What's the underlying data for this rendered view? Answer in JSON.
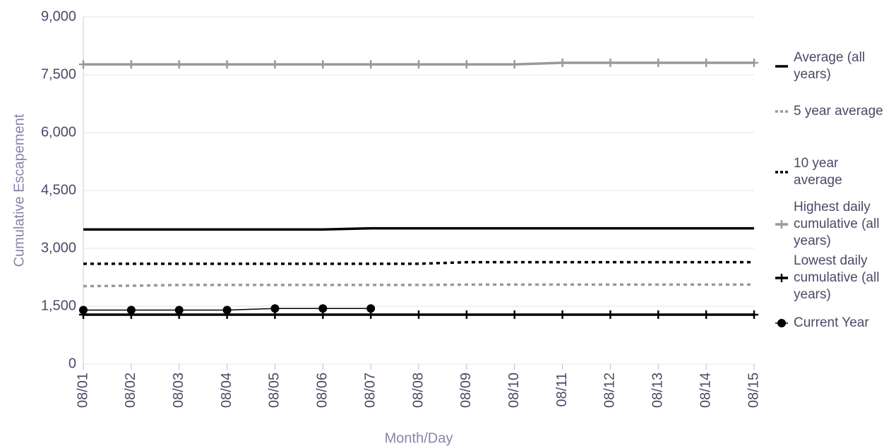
{
  "chart_data": {
    "type": "line",
    "x_label": "Month/Day",
    "y_label": "Cumulative Escapement",
    "categories": [
      "08/01",
      "08/02",
      "08/03",
      "08/04",
      "08/05",
      "08/06",
      "08/07",
      "08/08",
      "08/09",
      "08/10",
      "08/11",
      "08/12",
      "08/13",
      "08/14",
      "08/15"
    ],
    "ylim": [
      0,
      9000
    ],
    "yticks": [
      0,
      {
        "value": 1500,
        "label": "1,500"
      },
      {
        "value": 3000,
        "label": "3,000"
      },
      {
        "value": 4500,
        "label": "4,500"
      },
      {
        "value": 6000,
        "label": "6,000"
      },
      {
        "value": 7500,
        "label": "7,500"
      },
      {
        "value": 9000,
        "label": "9,000"
      }
    ],
    "grid": true,
    "legend": "right",
    "series": [
      {
        "name": "Average (all years)",
        "color": "#000000",
        "style": "solid",
        "marker": null,
        "values": [
          3490,
          3490,
          3490,
          3490,
          3490,
          3490,
          3520,
          3520,
          3520,
          3520,
          3520,
          3520,
          3520,
          3520,
          3520
        ]
      },
      {
        "name": "5 year average",
        "color": "#999999",
        "style": "dotted",
        "marker": null,
        "values": [
          2020,
          2030,
          2050,
          2050,
          2050,
          2050,
          2050,
          2050,
          2060,
          2060,
          2060,
          2060,
          2060,
          2060,
          2060
        ]
      },
      {
        "name": "10 year average",
        "color": "#000000",
        "style": "dotted",
        "marker": null,
        "values": [
          2600,
          2600,
          2600,
          2600,
          2600,
          2600,
          2600,
          2600,
          2640,
          2640,
          2640,
          2640,
          2640,
          2640,
          2640
        ]
      },
      {
        "name": "Highest daily cumulative (all years)",
        "color": "#999999",
        "style": "solid",
        "marker": "plus",
        "values": [
          7770,
          7770,
          7770,
          7770,
          7770,
          7770,
          7770,
          7770,
          7770,
          7770,
          7810,
          7810,
          7810,
          7810,
          7810
        ]
      },
      {
        "name": "Lowest daily cumulative (all years)",
        "color": "#000000",
        "style": "solid",
        "marker": "plus",
        "values": [
          1280,
          1280,
          1280,
          1280,
          1280,
          1280,
          1280,
          1280,
          1280,
          1280,
          1280,
          1280,
          1280,
          1280,
          1280
        ]
      },
      {
        "name": "Current Year",
        "color": "#000000",
        "style": "thin",
        "marker": "circle",
        "values": [
          1400,
          1400,
          1400,
          1400,
          1440,
          1440,
          1440,
          null,
          null,
          null,
          null,
          null,
          null,
          null,
          null
        ]
      }
    ]
  }
}
